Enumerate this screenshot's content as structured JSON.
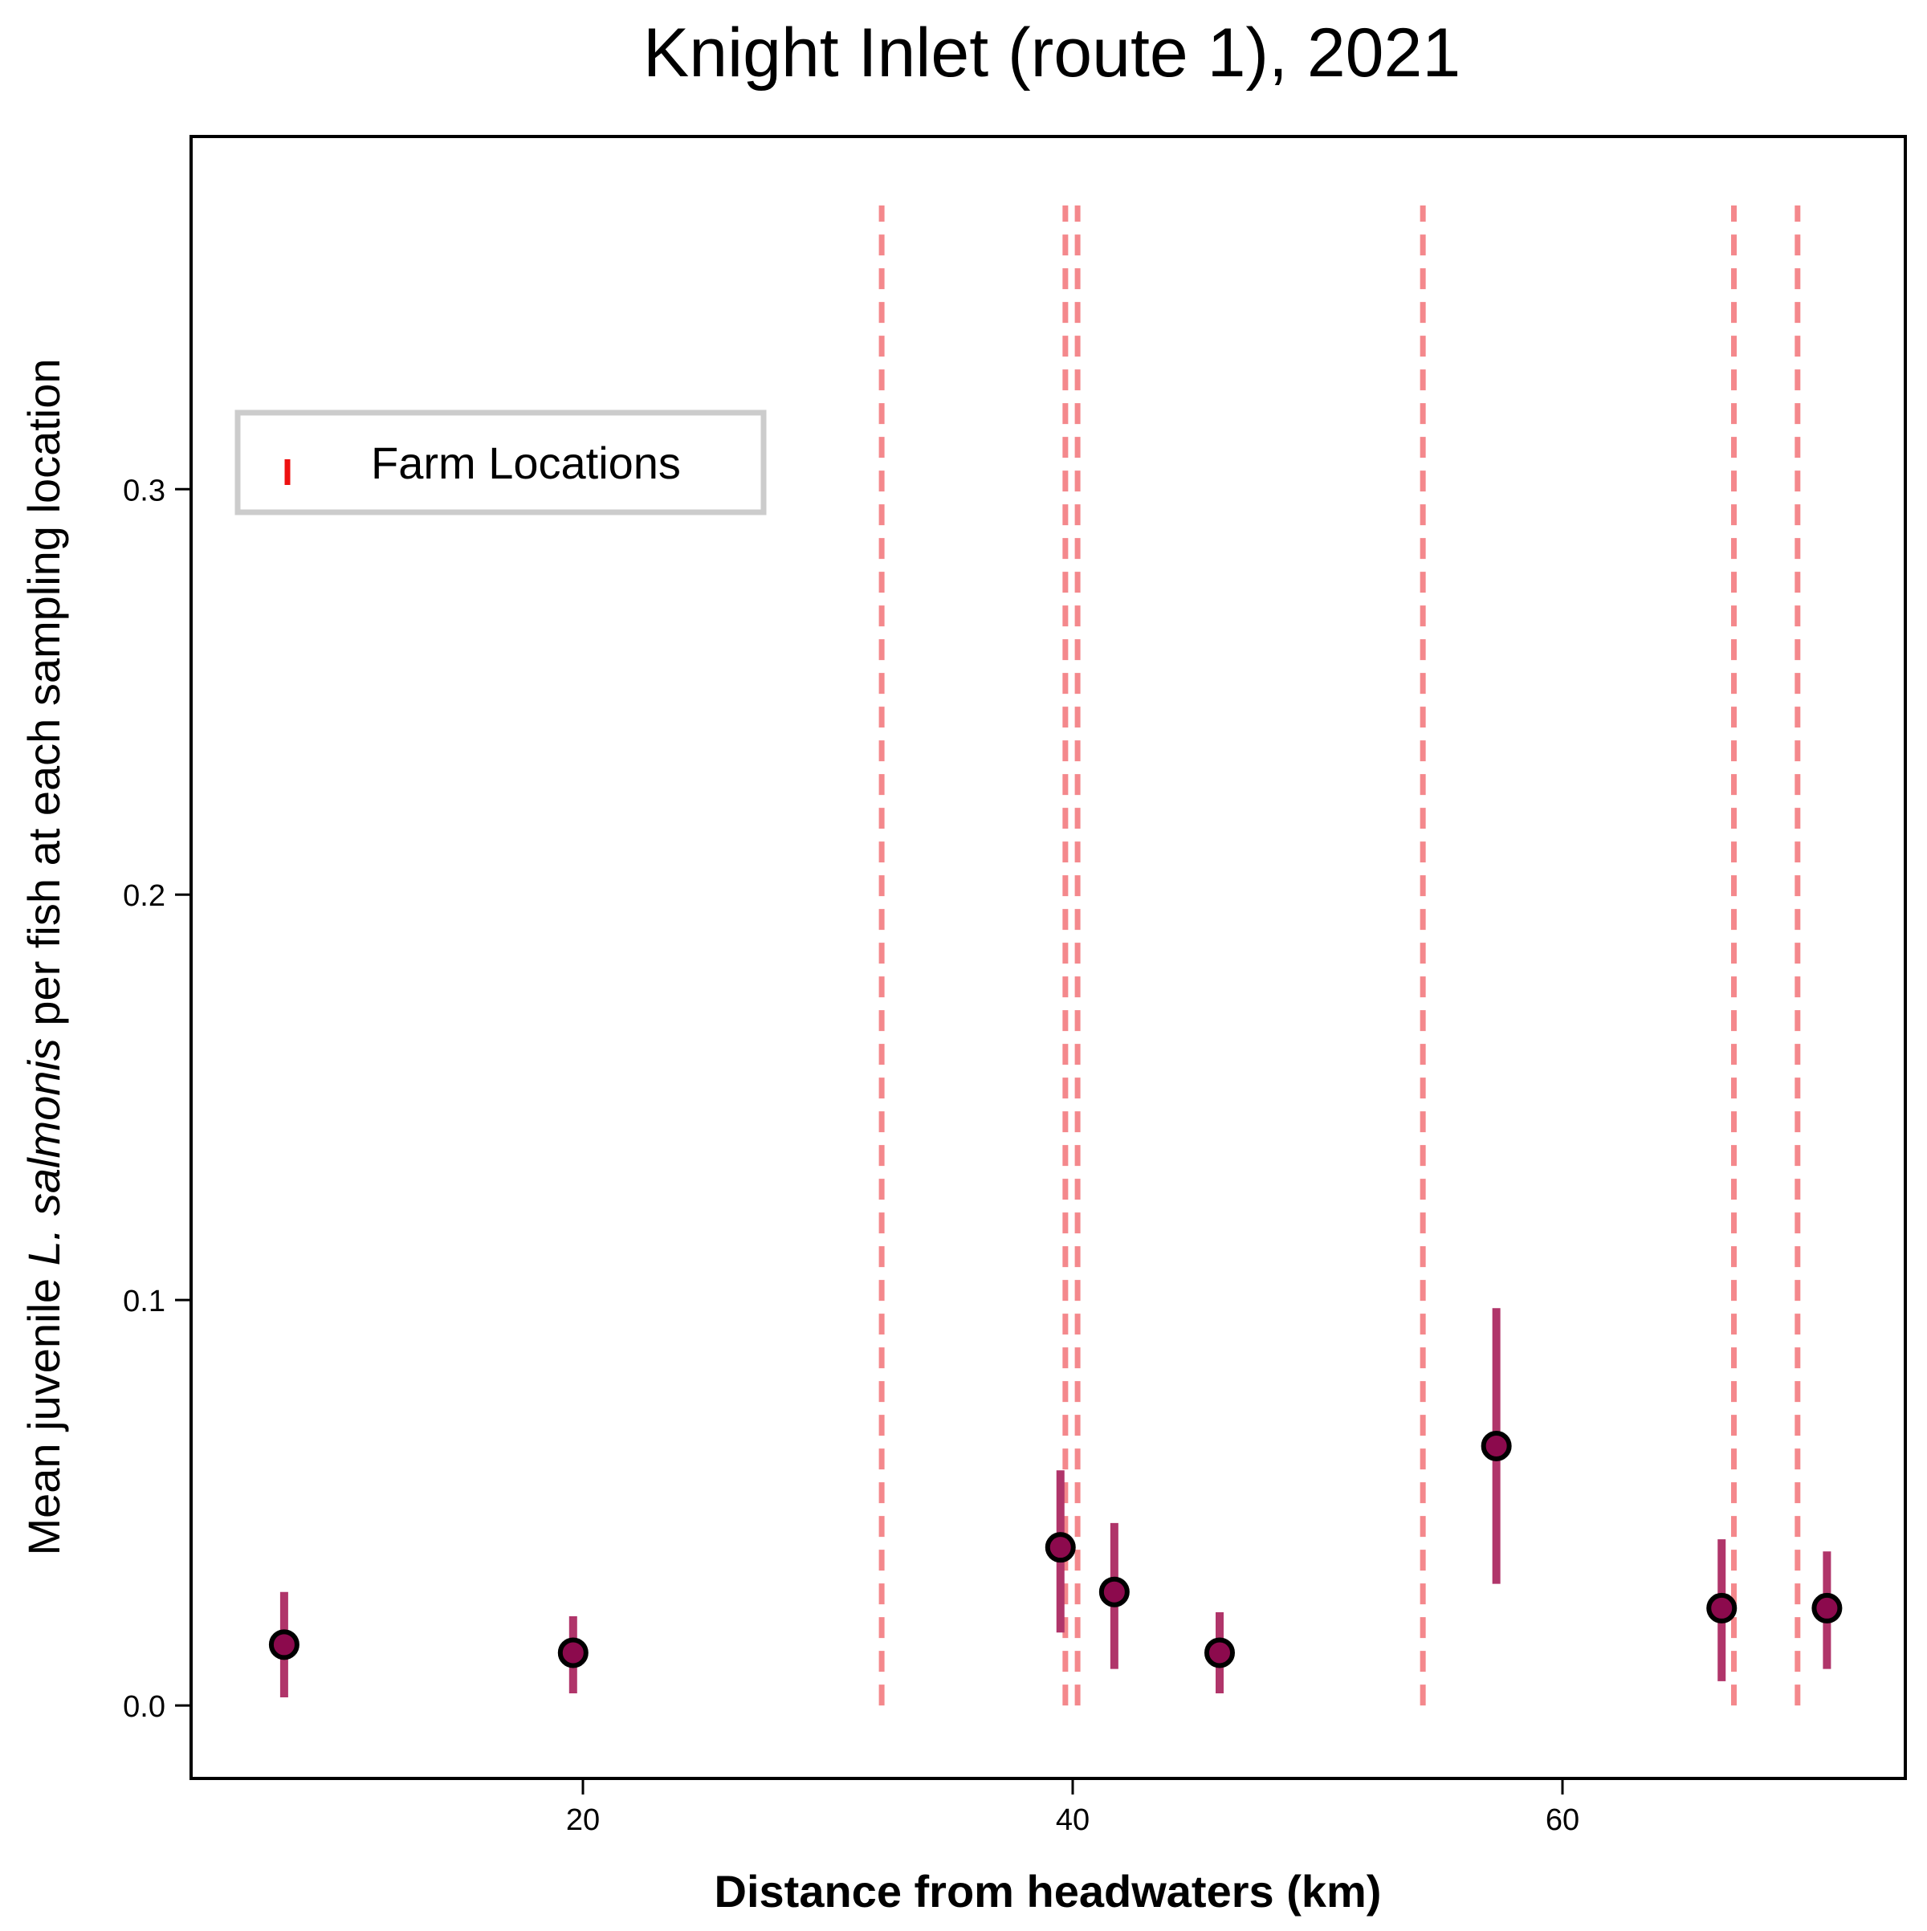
{
  "chart_data": {
    "type": "scatter",
    "title": "Knight Inlet (route 1), 2021",
    "xlabel": "Distance from headwaters (km)",
    "ylabel": {
      "before": "Mean juvenile ",
      "italic": "L. salmonis",
      "after": " per fish at each sampling location"
    },
    "xlim": [
      4.0,
      74.0
    ],
    "ylim": [
      -0.018,
      0.387
    ],
    "x_ticks": [
      {
        "value": 20,
        "label": "20"
      },
      {
        "value": 40,
        "label": "40"
      },
      {
        "value": 60,
        "label": "60"
      }
    ],
    "y_ticks": [
      {
        "value": 0.0,
        "label": "0.0"
      },
      {
        "value": 0.1,
        "label": "0.1"
      },
      {
        "value": 0.2,
        "label": "0.2"
      },
      {
        "value": 0.3,
        "label": "0.3"
      }
    ],
    "grid": false,
    "legend": {
      "position": "upper-left",
      "entries": [
        "Farm Locations"
      ]
    },
    "colors": {
      "farm_line": "#f4888c",
      "legend_marker": "#ee1111",
      "errorbar": "#b0356a",
      "point_fill": "#8c0a4d",
      "point_edge": "#000000",
      "legend_frame": "#cccccc"
    },
    "farm_locations": {
      "name": "Farm Locations",
      "x": [
        32.2,
        39.7,
        40.2,
        54.3,
        67.0,
        69.6
      ],
      "y_range": [
        0.0,
        0.37
      ]
    },
    "series": [
      {
        "x": [
          7.8,
          19.6,
          39.5,
          41.7,
          46.0,
          57.3,
          66.5,
          70.8
        ],
        "y": [
          0.015,
          0.013,
          0.039,
          0.028,
          0.013,
          0.064,
          0.024,
          0.024
        ],
        "y_low": [
          0.002,
          0.003,
          0.018,
          0.009,
          0.003,
          0.03,
          0.006,
          0.009
        ],
        "y_high": [
          0.028,
          0.022,
          0.058,
          0.045,
          0.023,
          0.098,
          0.041,
          0.038
        ]
      }
    ]
  }
}
